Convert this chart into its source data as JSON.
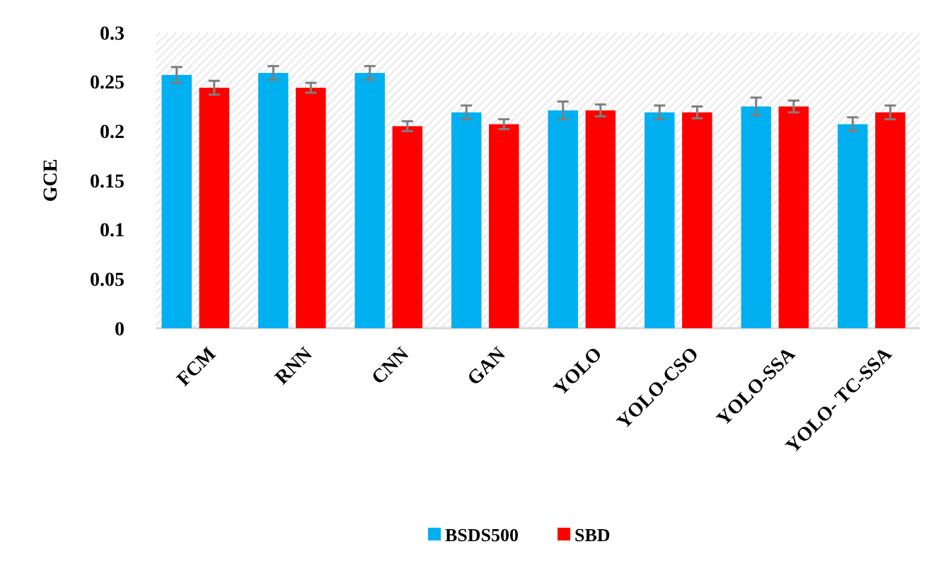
{
  "chart_data": {
    "type": "bar",
    "ylabel": "GCE",
    "categories": [
      "FCM",
      "RNN",
      "CNN",
      "GAN",
      "YOLO",
      "YOLO-CSO",
      "YOLO-SSA",
      "YOLO- TC-SSA"
    ],
    "series": [
      {
        "name": "BSDS500",
        "color": "#00b0f0",
        "values": [
          0.257,
          0.259,
          0.259,
          0.219,
          0.221,
          0.219,
          0.225,
          0.207
        ],
        "errors": [
          0.008,
          0.007,
          0.007,
          0.007,
          0.009,
          0.007,
          0.009,
          0.007
        ]
      },
      {
        "name": "SBD",
        "color": "#ff0000",
        "values": [
          0.244,
          0.244,
          0.205,
          0.207,
          0.221,
          0.219,
          0.225,
          0.219
        ],
        "errors": [
          0.007,
          0.005,
          0.005,
          0.005,
          0.006,
          0.006,
          0.006,
          0.007
        ]
      }
    ],
    "ylim": [
      0,
      0.3
    ],
    "yticks": [
      0,
      0.05,
      0.1,
      0.15,
      0.2,
      0.25,
      0.3
    ],
    "grid": false,
    "legend": "bottom"
  }
}
